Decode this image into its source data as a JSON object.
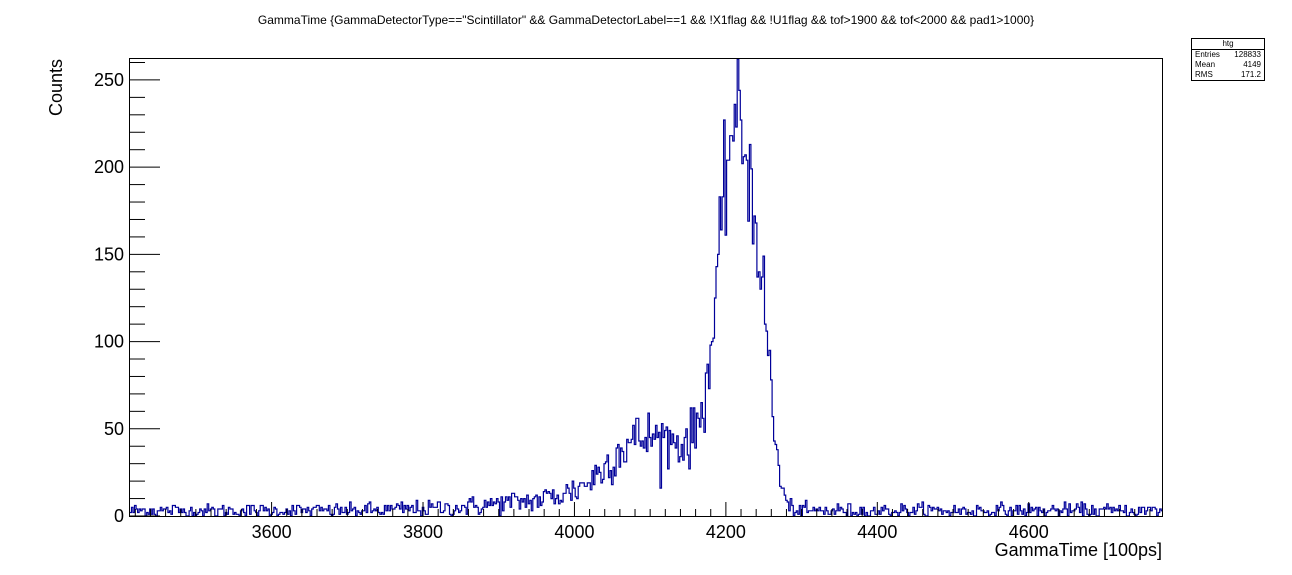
{
  "chart_data": {
    "type": "histogram",
    "title": "GammaTime {GammaDetectorType==\"Scintillator\" && GammaDetectorLabel==1 &&  !X1flag && !U1flag && tof>1900 && tof<2000 && pad1>1000}",
    "xlabel": "GammaTime [100ps]",
    "ylabel": "Counts",
    "xlim": [
      3413,
      4776
    ],
    "ylim": [
      0,
      262
    ],
    "x_ticks": [
      3600,
      3800,
      4000,
      4200,
      4400,
      4600
    ],
    "y_ticks": [
      0,
      50,
      100,
      150,
      200,
      250
    ],
    "x_minor_step": 20,
    "y_minor_step": 10,
    "line_color": "#000099",
    "grid": false,
    "legend": "none",
    "bin_width": 2,
    "profile": [
      [
        3413,
        3
      ],
      [
        3650,
        3
      ],
      [
        3700,
        3
      ],
      [
        3750,
        3.5
      ],
      [
        3800,
        4
      ],
      [
        3850,
        5
      ],
      [
        3900,
        7
      ],
      [
        3950,
        9
      ],
      [
        3980,
        12
      ],
      [
        4000,
        15
      ],
      [
        4020,
        20
      ],
      [
        4040,
        28
      ],
      [
        4060,
        38
      ],
      [
        4080,
        44
      ],
      [
        4100,
        45
      ],
      [
        4120,
        44
      ],
      [
        4140,
        42
      ],
      [
        4155,
        44
      ],
      [
        4165,
        55
      ],
      [
        4175,
        78
      ],
      [
        4185,
        112
      ],
      [
        4195,
        165
      ],
      [
        4203,
        212
      ],
      [
        4210,
        226
      ],
      [
        4215,
        224
      ],
      [
        4220,
        220
      ],
      [
        4227,
        210
      ],
      [
        4233,
        190
      ],
      [
        4240,
        168
      ],
      [
        4248,
        135
      ],
      [
        4255,
        100
      ],
      [
        4262,
        60
      ],
      [
        4268,
        32
      ],
      [
        4275,
        14
      ],
      [
        4282,
        6
      ],
      [
        4290,
        3
      ],
      [
        4776,
        3
      ]
    ]
  },
  "stats_box": {
    "name": "htg",
    "entries_label": "Entries",
    "entries_value": "128833",
    "mean_label": "Mean",
    "mean_value": "4149",
    "rms_label": "RMS",
    "rms_value": "171.2"
  }
}
